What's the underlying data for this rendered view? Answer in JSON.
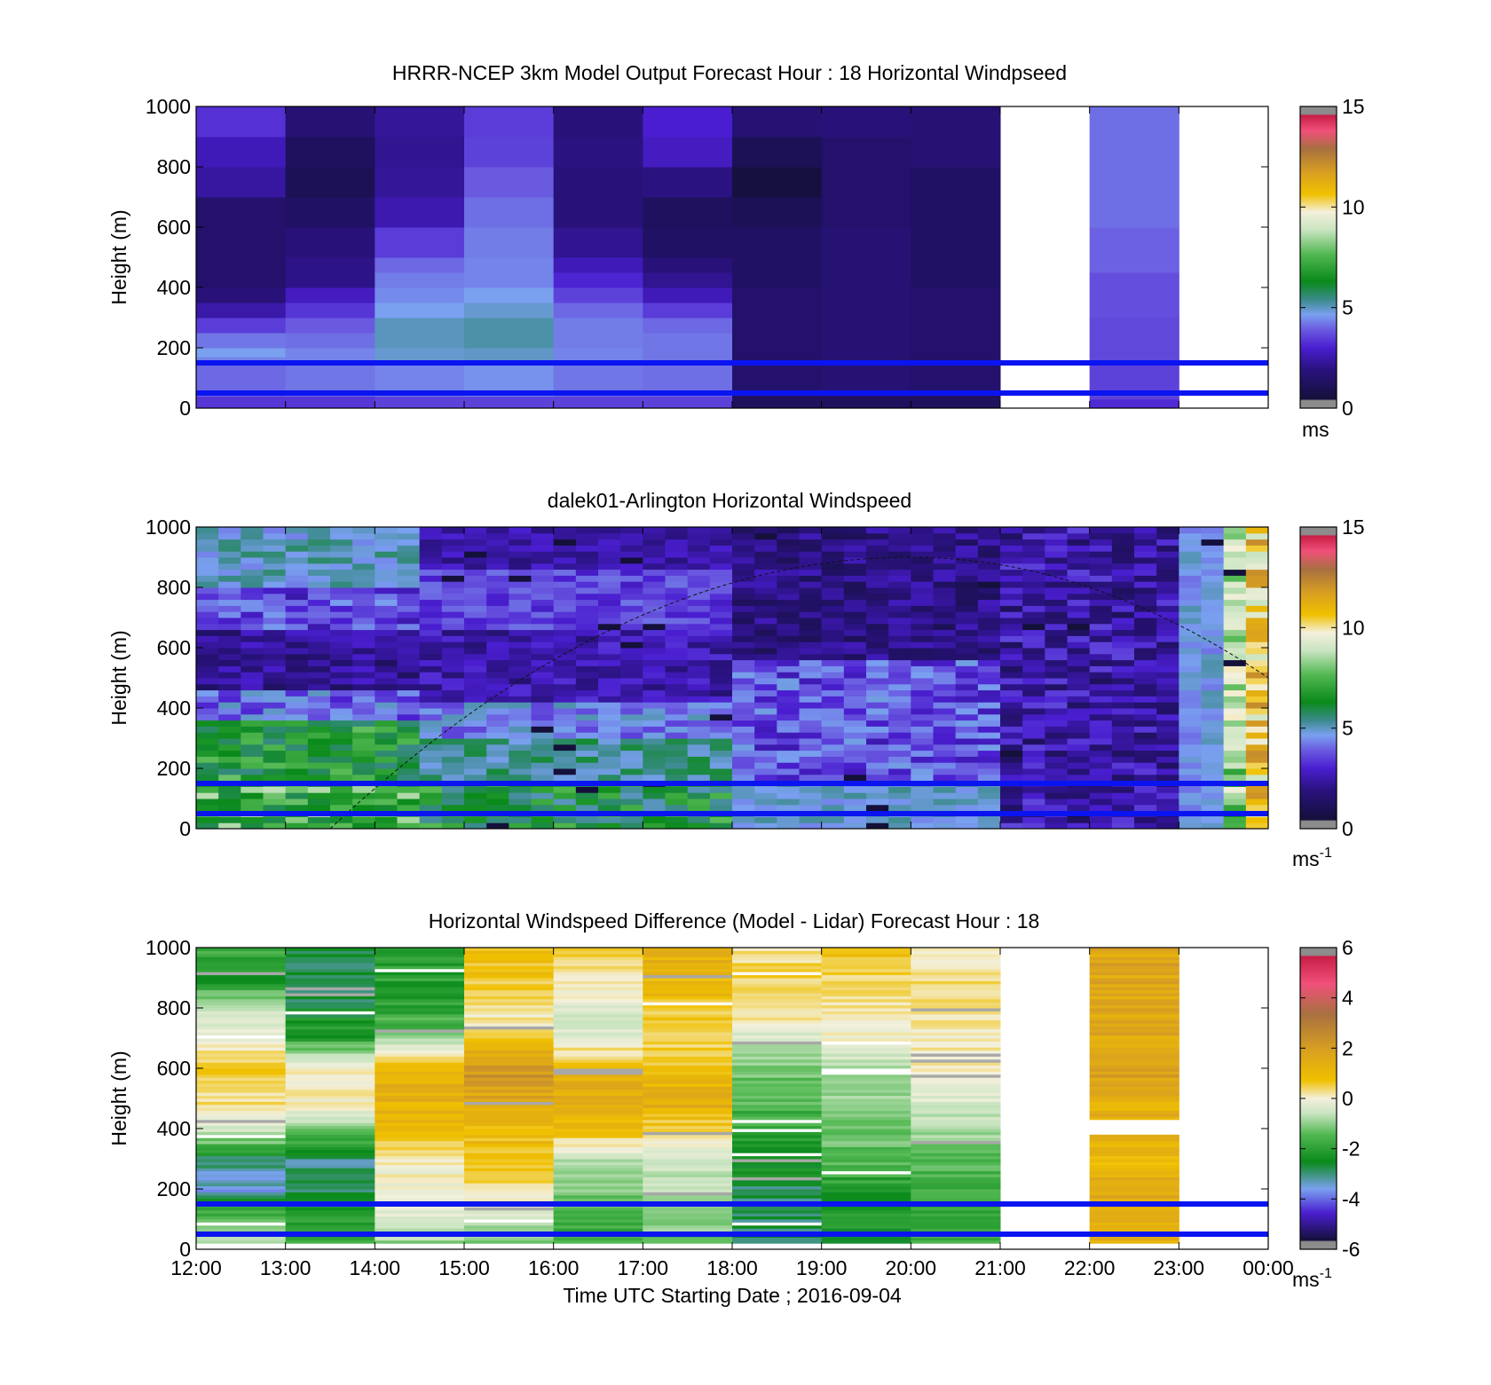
{
  "chart_data": [
    {
      "type": "heatmap",
      "title": "HRRR-NCEP 3km Model Output   Forecast Hour : 18 Horizontal Windpseed",
      "ylabel": "Height (m)",
      "xlabel": "",
      "ylim": [
        0,
        1000
      ],
      "yticks": [
        "0",
        "200",
        "400",
        "600",
        "800",
        "1000"
      ],
      "x_categories": [
        "12:00",
        "13:00",
        "14:00",
        "15:00",
        "16:00",
        "17:00",
        "18:00",
        "19:00",
        "20:00",
        "21:00",
        "22:00",
        "23:00"
      ],
      "colorbar": {
        "min": 0,
        "max": 15,
        "ticks": [
          "0",
          "5",
          "10",
          "15"
        ],
        "unit": "ms"
      },
      "data_top_m": [
        1000,
        1000,
        1000,
        1000,
        1000,
        1000,
        1000,
        1000,
        1000,
        null,
        1000,
        null
      ],
      "data_bottom_m": [
        20,
        20,
        20,
        20,
        20,
        20,
        20,
        20,
        20,
        null,
        20,
        null
      ],
      "overlay_lines_m": [
        150,
        50
      ]
    },
    {
      "type": "heatmap",
      "title": "dalek01-Arlington  Horizontal Windspeed",
      "ylabel": "Height (m)",
      "xlabel": "",
      "ylim": [
        0,
        1000
      ],
      "yticks": [
        "0",
        "200",
        "400",
        "600",
        "800",
        "1000"
      ],
      "colorbar": {
        "min": 0,
        "max": 15,
        "ticks": [
          "0",
          "5",
          "10",
          "15"
        ],
        "unit": "ms",
        "unit_exp": "-1"
      },
      "overlay_lines_m": [
        150,
        50
      ],
      "boundary_curve": {
        "start": [
          "13:30",
          0
        ],
        "peak": [
          "20:00",
          900
        ],
        "end": [
          "00:00",
          500
        ]
      }
    },
    {
      "type": "heatmap",
      "title": "Horizontal Windspeed Difference (Model - Lidar) Forecast Hour : 18",
      "ylabel": "Height (m)",
      "xlabel": "Time UTC  Starting Date ; 2016-09-04",
      "ylim": [
        0,
        1000
      ],
      "yticks": [
        "0",
        "200",
        "400",
        "600",
        "800",
        "1000"
      ],
      "xticks": [
        "12:00",
        "13:00",
        "14:00",
        "15:00",
        "16:00",
        "17:00",
        "18:00",
        "19:00",
        "20:00",
        "21:00",
        "22:00",
        "23:00",
        "00:00"
      ],
      "colorbar": {
        "min": -6,
        "max": 6,
        "ticks": [
          "-6",
          "-4",
          "-2",
          "0",
          "2",
          "4",
          "6"
        ],
        "unit": "ms",
        "unit_exp": "-1"
      },
      "overlay_lines_m": [
        150,
        50
      ],
      "gap_22h_m": [
        380,
        430
      ]
    }
  ],
  "colors": {
    "overlay_line": "#0a14f0",
    "windspeed_colormap": [
      "#8c8c8c",
      "#14103a",
      "#2a1280",
      "#4a1ed0",
      "#6a5ae0",
      "#7aa0f0",
      "#3a8a8a",
      "#0a8a1a",
      "#52b852",
      "#c8e4c0",
      "#f4f0dc",
      "#f0c000",
      "#d8a020",
      "#a87040",
      "#f0507a",
      "#c81e46",
      "#8c8c8c"
    ],
    "difference_colormap": [
      "#8c8c8c",
      "#14103a",
      "#4a1ed0",
      "#7aa0f0",
      "#0a8a1a",
      "#52b852",
      "#c8e4c0",
      "#f4f0dc",
      "#f0c000",
      "#d8a020",
      "#a87040",
      "#f0507a",
      "#c81e46",
      "#8c8c8c"
    ]
  }
}
